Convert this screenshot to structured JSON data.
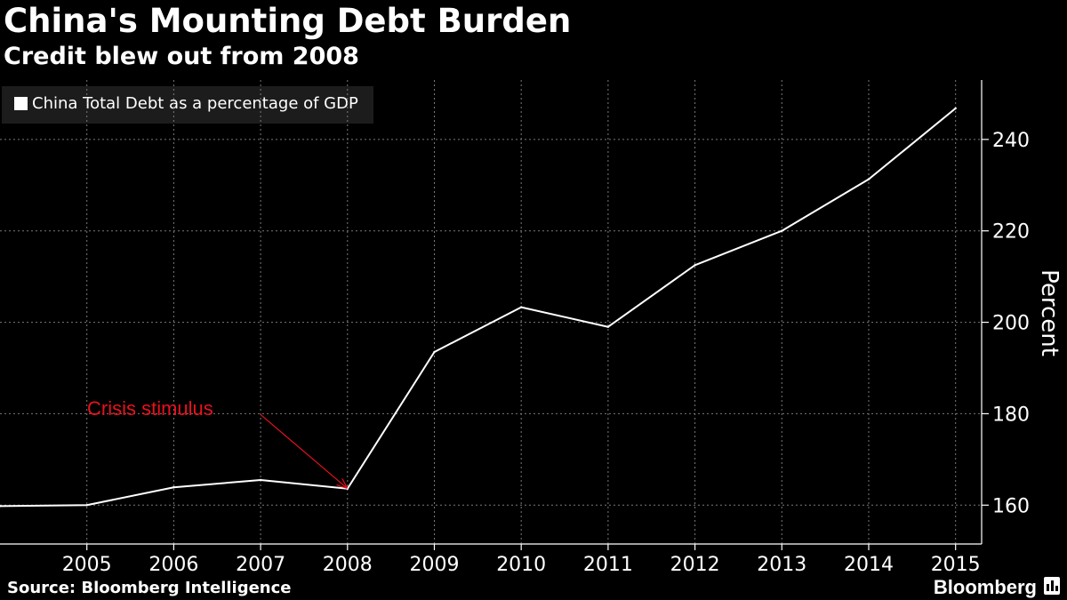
{
  "header": {
    "title": "China's Mounting Debt Burden",
    "subtitle": "Credit blew out from 2008"
  },
  "footer": {
    "source": "Source: Bloomberg Intelligence",
    "brand": "Bloomberg"
  },
  "colors": {
    "background": "#000000",
    "series": "#ffffff",
    "annotation": "#e8111e",
    "grid": "#7a7a7a"
  },
  "chart_data": {
    "type": "line",
    "title": "China's Mounting Debt Burden",
    "subtitle": "Credit blew out from 2008",
    "xlabel": "",
    "ylabel": "Percent",
    "legend": {
      "position": "top-left",
      "entries": [
        "China Total Debt as a percentage of GDP"
      ]
    },
    "x": [
      2004,
      2005,
      2006,
      2007,
      2008,
      2009,
      2010,
      2011,
      2012,
      2013,
      2014,
      2015
    ],
    "x_ticks": [
      "2005",
      "2006",
      "2007",
      "2008",
      "2009",
      "2010",
      "2011",
      "2012",
      "2013",
      "2014",
      "2015"
    ],
    "y_ticks": [
      "160",
      "180",
      "200",
      "220",
      "240"
    ],
    "xlim": [
      2004,
      2015.3
    ],
    "ylim": [
      151.5,
      253
    ],
    "grid": true,
    "series": [
      {
        "name": "China Total Debt as a percentage of GDP",
        "x": [
          2004,
          2005,
          2006,
          2007,
          2008,
          2009,
          2010,
          2011,
          2012,
          2013,
          2014,
          2015
        ],
        "values": [
          159.8,
          160.0,
          163.9,
          165.5,
          163.6,
          193.5,
          203.3,
          199.0,
          212.5,
          220.0,
          231.3,
          246.8
        ]
      }
    ],
    "annotations": [
      {
        "text": "Crisis stimulus",
        "arrow_from": {
          "x": 2007.0,
          "y": 179.8
        },
        "arrow_to": {
          "x": 2008,
          "y": 163.6
        }
      }
    ]
  }
}
